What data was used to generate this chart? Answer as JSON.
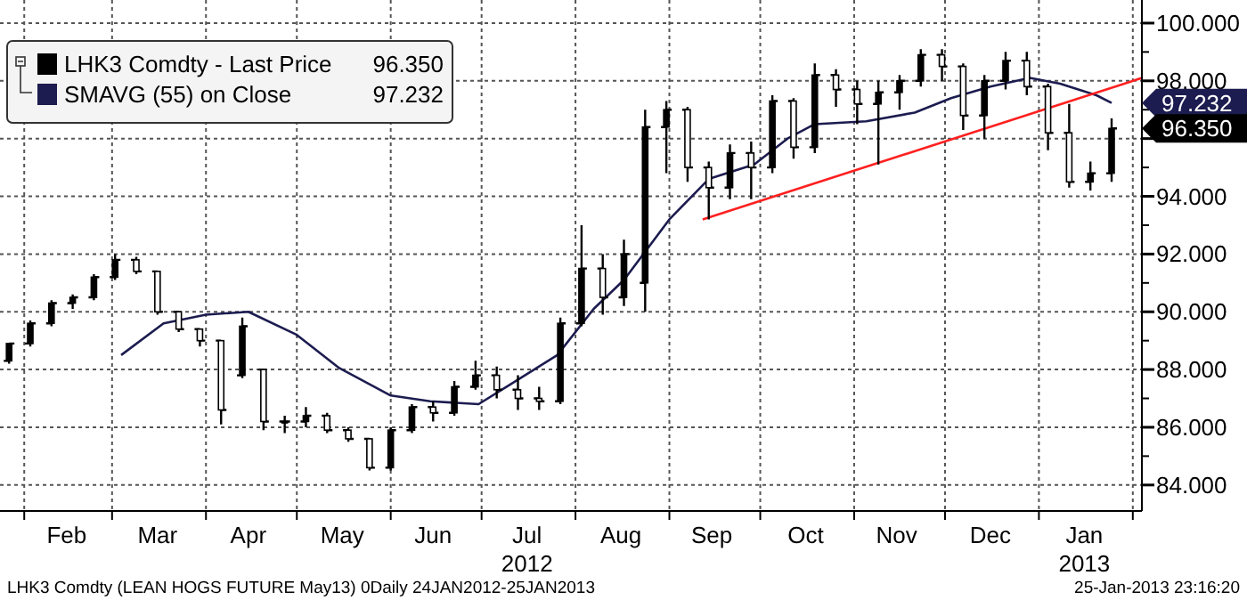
{
  "chart_data": {
    "type": "candlestick",
    "xlim": [
      "2012-01-24",
      "2013-02-04"
    ],
    "ylim": [
      83.1,
      100.8
    ],
    "yticks": [
      {
        "value": 84,
        "label": "84.000"
      },
      {
        "value": 85,
        "label": null
      },
      {
        "value": 86,
        "label": "86.000"
      },
      {
        "value": 87,
        "label": null
      },
      {
        "value": 88,
        "label": "88.000"
      },
      {
        "value": 89,
        "label": null
      },
      {
        "value": 90,
        "label": "90.000"
      },
      {
        "value": 91,
        "label": null
      },
      {
        "value": 92,
        "label": "92.000"
      },
      {
        "value": 93,
        "label": null
      },
      {
        "value": 94,
        "label": "94.000"
      },
      {
        "value": 95,
        "label": null
      },
      {
        "value": 96,
        "label": null
      },
      {
        "value": 97,
        "label": null
      },
      {
        "value": 98,
        "label": "98.000"
      },
      {
        "value": 99,
        "label": null
      },
      {
        "value": 100,
        "label": "100.000"
      }
    ],
    "xticks": [
      {
        "value": "2012-02-01",
        "label": null
      },
      {
        "value": "2012-02-15",
        "label": "Feb"
      },
      {
        "value": "2012-03-01",
        "label": null
      },
      {
        "value": "2012-03-16",
        "label": "Mar"
      },
      {
        "value": "2012-04-01",
        "label": null
      },
      {
        "value": "2012-04-15",
        "label": "Apr"
      },
      {
        "value": "2012-05-01",
        "label": null
      },
      {
        "value": "2012-05-16",
        "label": "May"
      },
      {
        "value": "2012-06-01",
        "label": null
      },
      {
        "value": "2012-06-15",
        "label": "Jun"
      },
      {
        "value": "2012-07-01",
        "label": null
      },
      {
        "value": "2012-07-16",
        "label": "Jul\n2012"
      },
      {
        "value": "2012-08-01",
        "label": null
      },
      {
        "value": "2012-08-16",
        "label": "Aug"
      },
      {
        "value": "2012-09-01",
        "label": null
      },
      {
        "value": "2012-09-15",
        "label": "Sep"
      },
      {
        "value": "2012-10-01",
        "label": null
      },
      {
        "value": "2012-10-16",
        "label": "Oct"
      },
      {
        "value": "2012-11-01",
        "label": null
      },
      {
        "value": "2012-11-15",
        "label": "Nov"
      },
      {
        "value": "2012-12-01",
        "label": null
      },
      {
        "value": "2012-12-16",
        "label": "Dec"
      },
      {
        "value": "2013-01-01",
        "label": null
      },
      {
        "value": "2013-01-16",
        "label": "Jan\n2013"
      },
      {
        "value": "2013-02-01",
        "label": null
      }
    ],
    "grid": true,
    "legend": "top left",
    "tick_labels": true,
    "series": [
      {
        "name": "LHK3 Comdty - Last Price",
        "color": "#000000",
        "x": [
          "2012-01-27",
          "2012-02-03",
          "2012-02-10",
          "2012-02-17",
          "2012-02-24",
          "2012-03-02",
          "2012-03-09",
          "2012-03-16",
          "2012-03-23",
          "2012-03-30",
          "2012-04-06",
          "2012-04-13",
          "2012-04-20",
          "2012-04-27",
          "2012-05-04",
          "2012-05-11",
          "2012-05-18",
          "2012-05-25",
          "2012-06-01",
          "2012-06-08",
          "2012-06-15",
          "2012-06-22",
          "2012-06-29",
          "2012-07-06",
          "2012-07-13",
          "2012-07-20",
          "2012-07-27",
          "2012-08-03",
          "2012-08-10",
          "2012-08-17",
          "2012-08-24",
          "2012-08-31",
          "2012-09-07",
          "2012-09-14",
          "2012-09-21",
          "2012-09-28",
          "2012-10-05",
          "2012-10-12",
          "2012-10-19",
          "2012-10-26",
          "2012-11-02",
          "2012-11-09",
          "2012-11-16",
          "2012-11-23",
          "2012-11-30",
          "2012-12-07",
          "2012-12-14",
          "2012-12-21",
          "2012-12-28",
          "2013-01-04",
          "2013-01-11",
          "2013-01-18",
          "2013-01-25"
        ],
        "ohlc": [
          [
            88.3,
            88.9,
            88.2,
            88.9
          ],
          [
            88.9,
            89.7,
            88.8,
            89.6
          ],
          [
            89.6,
            90.4,
            89.5,
            90.3
          ],
          [
            90.3,
            90.6,
            90.1,
            90.5
          ],
          [
            90.5,
            91.3,
            90.4,
            91.2
          ],
          [
            91.2,
            92.0,
            91.1,
            91.8
          ],
          [
            91.8,
            91.9,
            91.3,
            91.4
          ],
          [
            91.4,
            91.4,
            89.9,
            90.0
          ],
          [
            90.0,
            90.0,
            89.3,
            89.4
          ],
          [
            89.4,
            89.4,
            88.8,
            89.0
          ],
          [
            89.0,
            89.0,
            86.1,
            86.6
          ],
          [
            87.8,
            89.8,
            87.7,
            89.5
          ],
          [
            88.0,
            88.0,
            85.9,
            86.2
          ],
          [
            86.2,
            86.4,
            85.8,
            86.2
          ],
          [
            86.2,
            86.7,
            86.0,
            86.4
          ],
          [
            86.4,
            86.5,
            85.8,
            85.9
          ],
          [
            85.9,
            86.0,
            85.5,
            85.6
          ],
          [
            85.6,
            85.6,
            84.5,
            84.6
          ],
          [
            84.6,
            86.0,
            84.5,
            85.9
          ],
          [
            85.9,
            86.8,
            85.8,
            86.7
          ],
          [
            86.7,
            86.9,
            86.2,
            86.5
          ],
          [
            86.5,
            87.6,
            86.4,
            87.4
          ],
          [
            87.4,
            88.3,
            87.3,
            87.8
          ],
          [
            87.8,
            88.1,
            87.0,
            87.3
          ],
          [
            87.3,
            87.8,
            86.6,
            87.0
          ],
          [
            87.0,
            87.4,
            86.6,
            86.9
          ],
          [
            86.9,
            89.8,
            86.8,
            89.6
          ],
          [
            89.6,
            93.0,
            89.5,
            91.5
          ],
          [
            91.5,
            92.0,
            89.9,
            90.5
          ],
          [
            90.5,
            92.5,
            90.2,
            92.0
          ],
          [
            91.0,
            97.0,
            90.0,
            96.4
          ],
          [
            96.4,
            97.3,
            94.8,
            97.0
          ],
          [
            97.0,
            97.1,
            94.5,
            95.0
          ],
          [
            95.0,
            95.2,
            93.2,
            94.3
          ],
          [
            94.3,
            95.8,
            93.9,
            95.5
          ],
          [
            95.5,
            95.9,
            93.9,
            95.0
          ],
          [
            95.0,
            97.5,
            94.8,
            97.3
          ],
          [
            97.3,
            97.4,
            95.3,
            95.7
          ],
          [
            95.7,
            98.6,
            95.5,
            98.2
          ],
          [
            98.2,
            98.4,
            97.1,
            97.7
          ],
          [
            97.7,
            98.0,
            96.5,
            97.2
          ],
          [
            97.2,
            98.0,
            95.1,
            97.6
          ],
          [
            97.6,
            98.2,
            97.0,
            98.0
          ],
          [
            98.0,
            99.1,
            97.8,
            98.9
          ],
          [
            98.9,
            99.1,
            98.0,
            98.5
          ],
          [
            98.5,
            98.6,
            96.3,
            96.8
          ],
          [
            96.8,
            98.2,
            96.0,
            98.0
          ],
          [
            98.0,
            99.0,
            97.7,
            98.7
          ],
          [
            98.7,
            99.0,
            97.5,
            97.8
          ],
          [
            97.8,
            97.9,
            95.6,
            96.2
          ],
          [
            96.2,
            97.2,
            94.3,
            94.5
          ],
          [
            94.5,
            95.2,
            94.2,
            94.8
          ],
          [
            94.8,
            96.7,
            94.5,
            96.35
          ]
        ]
      },
      {
        "name": "SMAVG (55) on Close",
        "type": "line",
        "color": "#1c1c50",
        "x": [
          "2012-03-04",
          "2012-03-18",
          "2012-04-01",
          "2012-04-15",
          "2012-05-01",
          "2012-05-15",
          "2012-06-01",
          "2012-06-14",
          "2012-06-30",
          "2012-07-10",
          "2012-07-26",
          "2012-08-07",
          "2012-08-17",
          "2012-09-01",
          "2012-09-14",
          "2012-09-29",
          "2012-10-10",
          "2012-10-19",
          "2012-11-05",
          "2012-11-21",
          "2012-12-03",
          "2012-12-16",
          "2012-12-29",
          "2013-01-08",
          "2013-01-20",
          "2013-01-25"
        ],
        "values": [
          88.5,
          89.6,
          89.9,
          90.0,
          89.2,
          88.05,
          87.1,
          86.9,
          86.8,
          87.45,
          88.5,
          90.1,
          91.1,
          93.2,
          94.6,
          95.1,
          96.0,
          96.5,
          96.6,
          96.9,
          97.4,
          97.8,
          98.1,
          97.9,
          97.5,
          97.232
        ]
      },
      {
        "type": "line",
        "color": "#ff2020",
        "x": [
          "2012-09-12",
          "2013-02-04"
        ],
        "values": [
          93.2,
          98.1
        ]
      }
    ],
    "annotations": [
      {
        "text": "96.350",
        "x": "2013-01-25",
        "y": 96.35
      },
      {
        "text": "97.232",
        "x": "2013-01-25",
        "y": 97.232
      },
      "LHK3 Comdty (LEAN HOGS FUTURE  May13) 0Daily 24JAN2012-25JAN2013",
      "25-Jan-2013 23:16:20"
    ]
  }
}
